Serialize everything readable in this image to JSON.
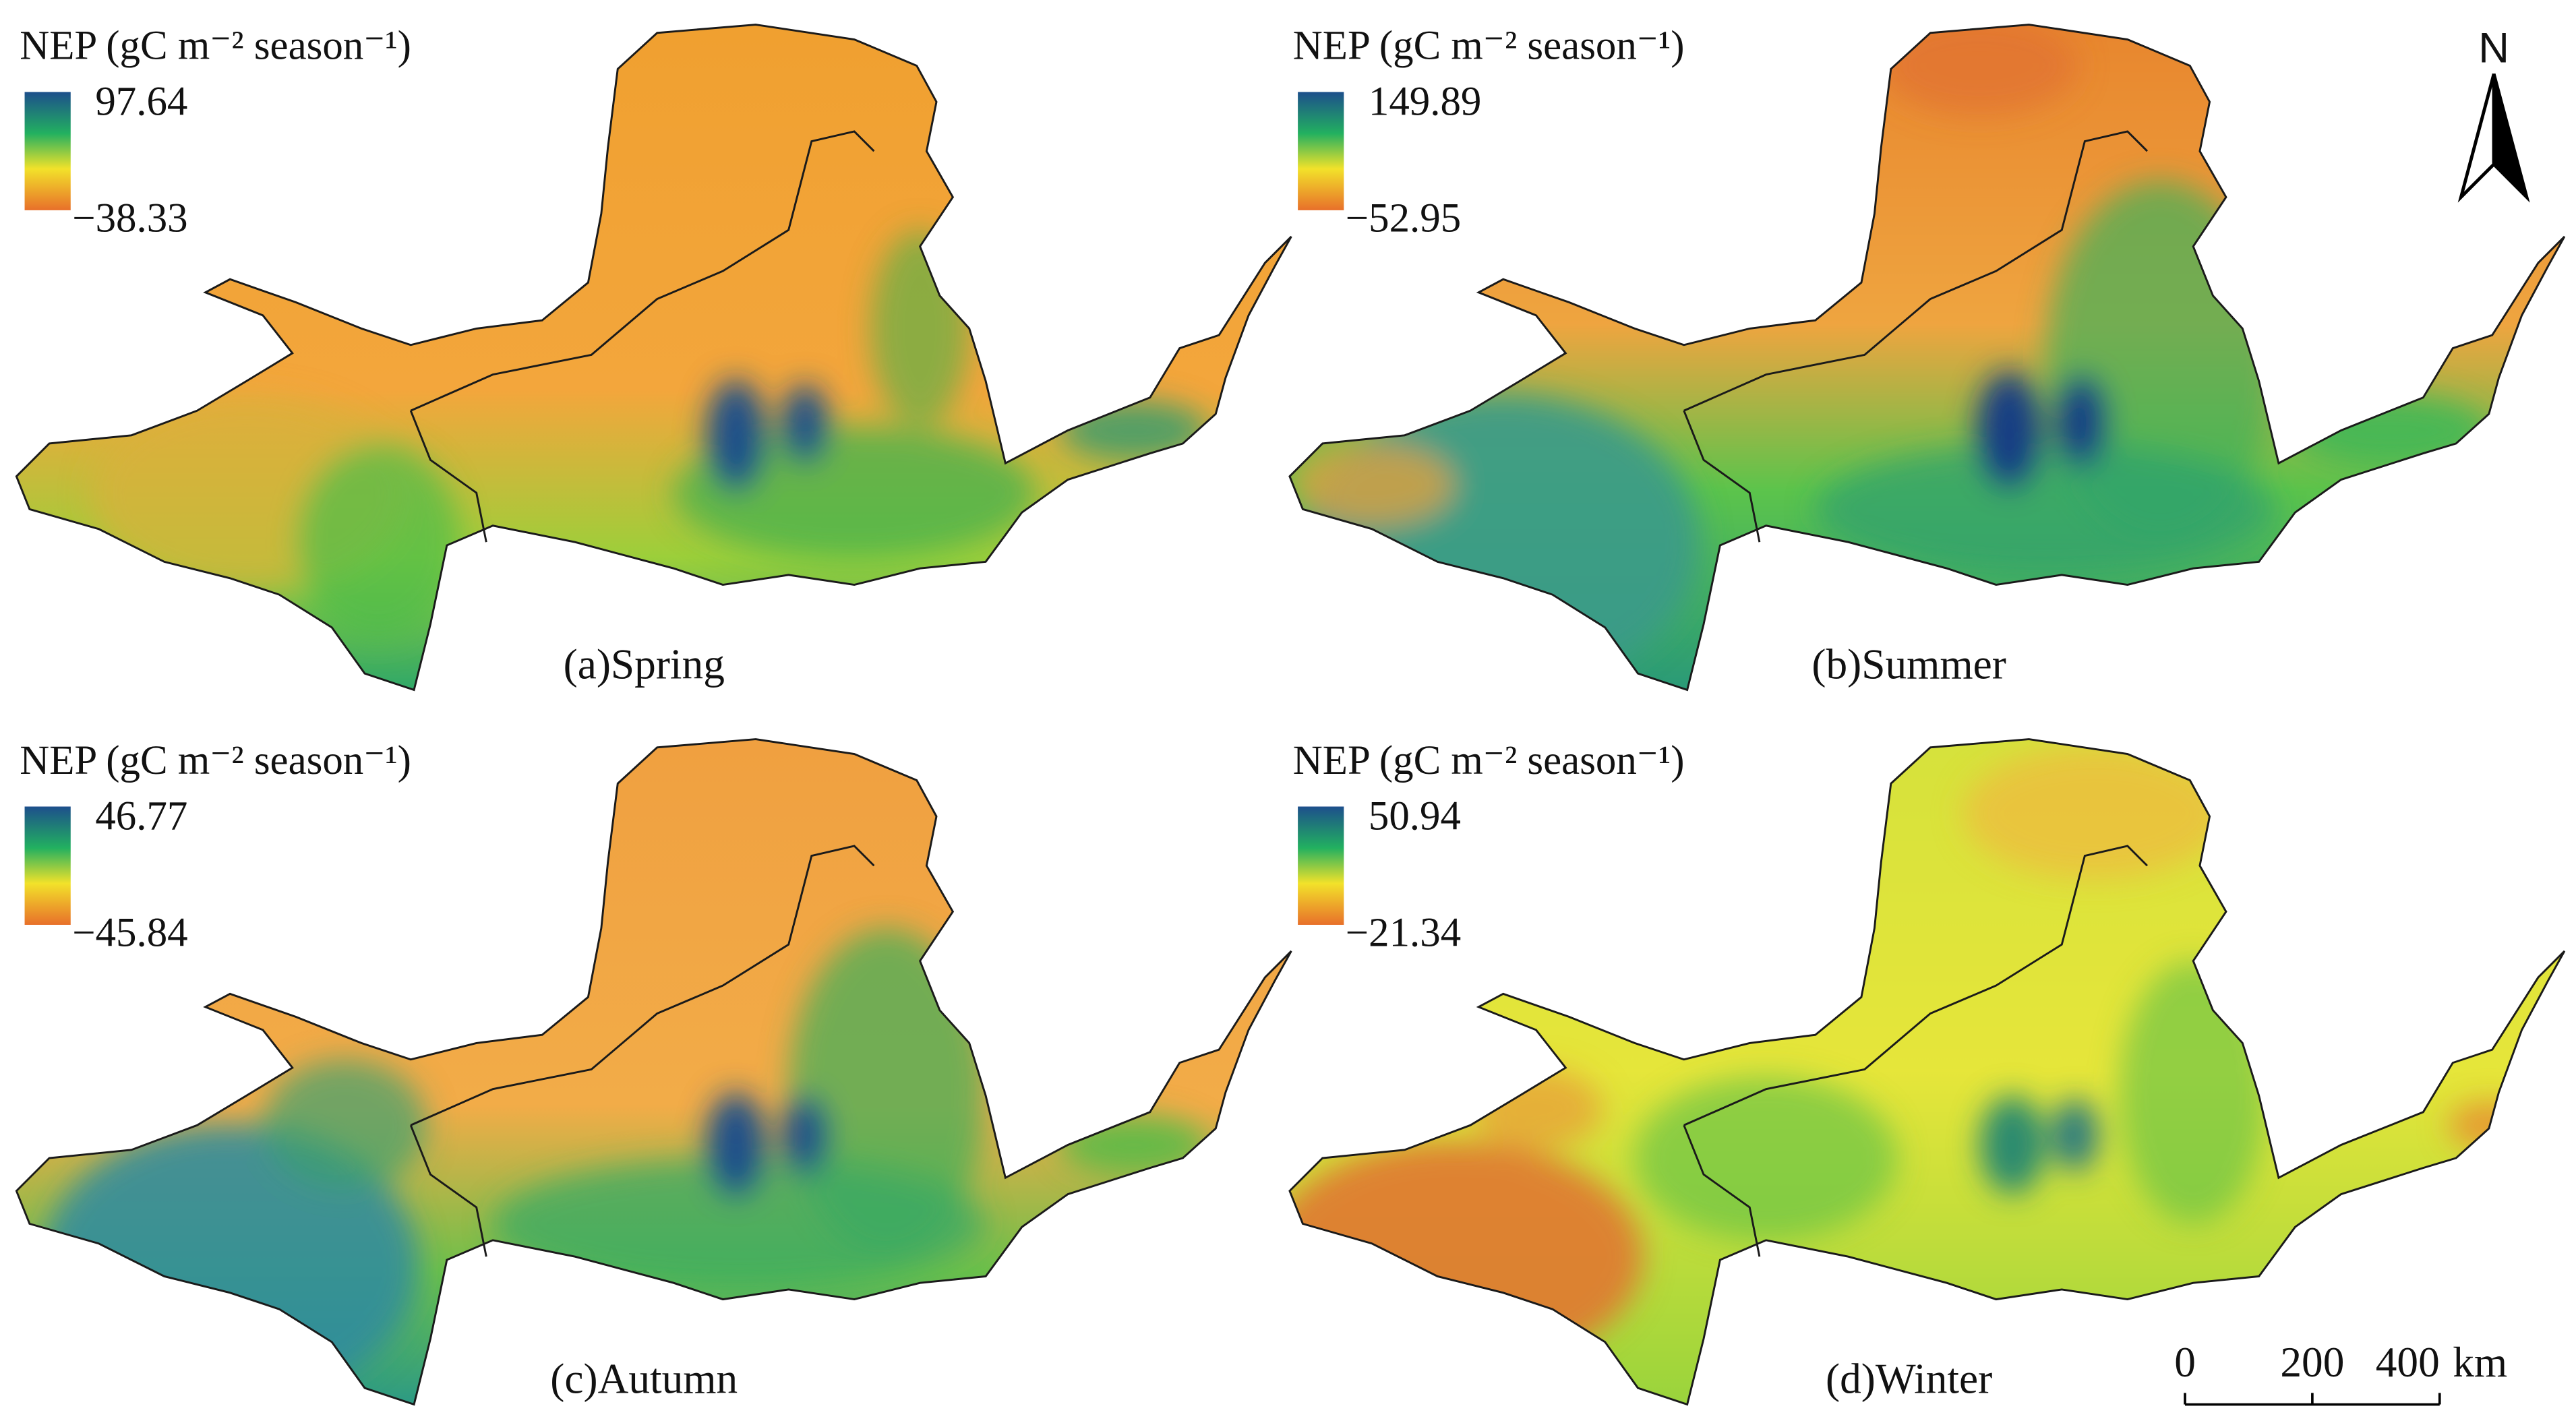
{
  "panels": [
    {
      "legend_title": "NEP (gC m⁻² season⁻¹)",
      "colorbar_max": 97.64,
      "colorbar_min": {
        "value": -38.33,
        "label": "−38.33"
      },
      "caption": "(a)Spring"
    },
    {
      "legend_title": "NEP (gC m⁻² season⁻¹)",
      "colorbar_max": 149.89,
      "colorbar_min": {
        "value": -52.95,
        "label": "−52.95"
      },
      "caption": "(b)Summer"
    },
    {
      "legend_title": "NEP (gC m⁻² season⁻¹)",
      "colorbar_max": 46.77,
      "colorbar_min": {
        "value": -45.84,
        "label": "−45.84"
      },
      "caption": "(c)Autumn"
    },
    {
      "legend_title": "NEP (gC m⁻² season⁻¹)",
      "colorbar_max": 50.94,
      "colorbar_min": {
        "value": -21.34,
        "label": "−21.34"
      },
      "caption": "(d)Winter"
    }
  ],
  "north_arrow": "N",
  "scale_bar": {
    "ticks": [
      0,
      200,
      400
    ],
    "unit": "km"
  }
}
